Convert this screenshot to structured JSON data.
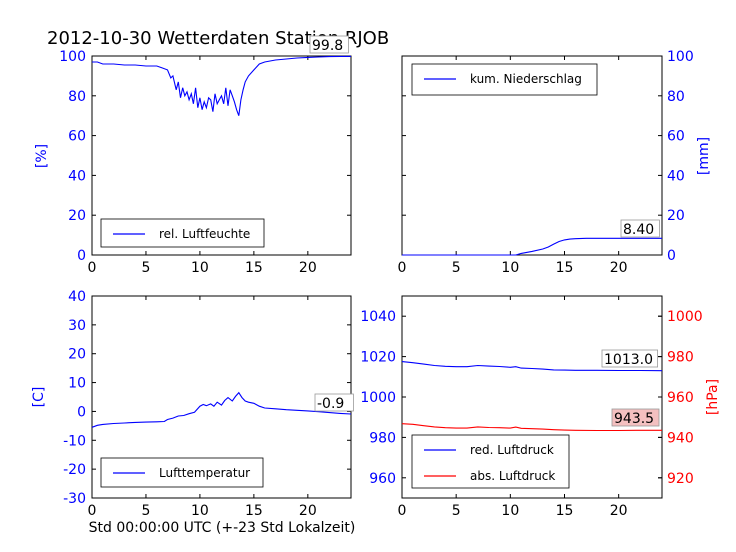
{
  "figure": {
    "title": "2012-10-30 Wetterdaten Station RJOB",
    "xlabel": "Std 00:00:00 UTC (+-23 Std Lokalzeit)"
  },
  "colors": {
    "blue": "#0000ff",
    "red": "#ff0000",
    "axis": "#000000",
    "label_bg_red": "#f4c0c0"
  },
  "chart_data": [
    {
      "id": "humidity",
      "type": "line",
      "xlim": [
        0,
        24
      ],
      "ylim": [
        0,
        100
      ],
      "xticks": [
        0,
        5,
        10,
        15,
        20
      ],
      "yticks": [
        0,
        20,
        40,
        60,
        80,
        100
      ],
      "ylabel": "[%]",
      "yaxis_side": "left",
      "ytick_color": "#0000ff",
      "legend": {
        "placement": "lower-left"
      },
      "value_label": "99.8",
      "series": [
        {
          "name": "rel. Luftfeuchte",
          "color": "#0000ff",
          "x": [
            0,
            0.5,
            1,
            2,
            3,
            4,
            5,
            6,
            6.5,
            7,
            7.3,
            7.5,
            7.8,
            8,
            8.2,
            8.4,
            8.6,
            8.8,
            9,
            9.2,
            9.4,
            9.6,
            9.8,
            10,
            10.2,
            10.4,
            10.6,
            10.8,
            11,
            11.2,
            11.4,
            11.6,
            11.8,
            12,
            12.2,
            12.4,
            12.6,
            12.8,
            13,
            13.2,
            13.4,
            13.6,
            13.8,
            14,
            14.2,
            14.5,
            15,
            15.5,
            16,
            17,
            18,
            19,
            20,
            21,
            22,
            23,
            24
          ],
          "y": [
            97,
            97,
            96,
            96,
            95.5,
            95.5,
            95,
            95,
            94,
            93,
            89,
            90,
            83,
            87,
            79,
            84,
            80,
            82,
            78,
            81,
            76,
            84,
            74,
            79,
            73,
            77,
            74,
            79,
            78,
            72,
            81,
            76,
            78,
            80,
            76,
            84,
            75,
            83,
            80,
            77,
            73,
            70,
            78,
            83,
            87,
            90,
            93,
            96,
            97,
            98,
            98.5,
            99,
            99.3,
            99.5,
            99.7,
            99.8,
            99.8
          ]
        }
      ]
    },
    {
      "id": "precip",
      "type": "line",
      "xlim": [
        0,
        24
      ],
      "ylim": [
        0,
        100
      ],
      "xticks": [
        0,
        5,
        10,
        15,
        20
      ],
      "yticks": [
        0,
        20,
        40,
        60,
        80,
        100
      ],
      "ylabel": "[mm]",
      "yaxis_side": "right",
      "ytick_color": "#0000ff",
      "legend": {
        "placement": "upper-left"
      },
      "value_label": "8.40",
      "series": [
        {
          "name": "kum. Niederschlag",
          "color": "#0000ff",
          "x": [
            0,
            10.5,
            11,
            12,
            13,
            13.5,
            14,
            14.5,
            15,
            15.5,
            16,
            17,
            18,
            24
          ],
          "y": [
            0,
            0,
            0.8,
            1.8,
            3,
            4,
            5.5,
            6.8,
            7.6,
            8,
            8.2,
            8.4,
            8.4,
            8.4
          ]
        }
      ]
    },
    {
      "id": "temperature",
      "type": "line",
      "xlim": [
        0,
        24
      ],
      "ylim": [
        -30,
        40
      ],
      "xticks": [
        0,
        5,
        10,
        15,
        20
      ],
      "yticks": [
        -30,
        -20,
        -10,
        0,
        10,
        20,
        30,
        40
      ],
      "ylabel": "[C]",
      "yaxis_side": "left",
      "ytick_color": "#0000ff",
      "legend": {
        "placement": "lower-left"
      },
      "value_label": "-0.9",
      "series": [
        {
          "name": "Lufttemperatur",
          "color": "#0000ff",
          "x": [
            0,
            0.5,
            1,
            2,
            3,
            4,
            5,
            6,
            6.7,
            7,
            7.5,
            8,
            8.5,
            9,
            9.5,
            10,
            10.3,
            10.6,
            11,
            11.3,
            11.6,
            12,
            12.3,
            12.6,
            13,
            13.3,
            13.6,
            13.9,
            14.2,
            14.5,
            15,
            15.5,
            16,
            17,
            18,
            19,
            20,
            21,
            22,
            23,
            24
          ],
          "y": [
            -5.5,
            -4.8,
            -4.5,
            -4.2,
            -4,
            -3.8,
            -3.7,
            -3.6,
            -3.5,
            -2.8,
            -2.3,
            -1.6,
            -1.4,
            -0.8,
            -0.3,
            1.8,
            2.4,
            2,
            2.6,
            1.8,
            3.2,
            2.2,
            3.8,
            4.8,
            3.6,
            5.2,
            6.5,
            4.8,
            3.6,
            3.2,
            2.8,
            1.8,
            1.2,
            0.9,
            0.6,
            0.4,
            0.2,
            -0.1,
            -0.4,
            -0.7,
            -0.9
          ]
        }
      ]
    },
    {
      "id": "pressure",
      "type": "line",
      "xlim": [
        0,
        24
      ],
      "ylim": [
        950,
        1050
      ],
      "xticks": [
        0,
        5,
        10,
        15,
        20
      ],
      "yticks": [
        960,
        980,
        1000,
        1020,
        1040
      ],
      "ytick_color": "#0000ff",
      "y2lim": [
        910,
        1010
      ],
      "y2ticks": [
        920,
        940,
        960,
        980,
        1000
      ],
      "y2tick_color": "#ff0000",
      "y2label": "[hPa]",
      "legend": {
        "placement": "lower-left"
      },
      "value_label": "1013.0",
      "value_label_2": "943.5",
      "series": [
        {
          "name": "red. Luftdruck",
          "color": "#0000ff",
          "axis": "left",
          "x": [
            0,
            1,
            2,
            3,
            4,
            5,
            6,
            7,
            8,
            9,
            10,
            10.5,
            11,
            12,
            13,
            14,
            15,
            16,
            18,
            20,
            22,
            24
          ],
          "y": [
            1017.5,
            1017,
            1016.3,
            1015.6,
            1015.2,
            1015,
            1015,
            1015.6,
            1015.3,
            1015.1,
            1014.7,
            1015,
            1014.3,
            1014.1,
            1013.8,
            1013.4,
            1013.3,
            1013.2,
            1013.2,
            1013.1,
            1013.1,
            1013
          ]
        },
        {
          "name": "abs. Luftdruck",
          "color": "#ff0000",
          "axis": "right",
          "x": [
            0,
            1,
            2,
            3,
            4,
            5,
            6,
            7,
            8,
            9,
            10,
            10.5,
            11,
            12,
            13,
            14,
            15,
            16,
            18,
            20,
            22,
            24
          ],
          "y": [
            946.8,
            946.5,
            945.8,
            945.2,
            944.8,
            944.6,
            944.6,
            945.2,
            944.9,
            944.8,
            944.6,
            945.1,
            944.5,
            944.3,
            944.1,
            943.8,
            943.6,
            943.5,
            943.4,
            943.4,
            943.5,
            943.5
          ]
        }
      ]
    }
  ]
}
